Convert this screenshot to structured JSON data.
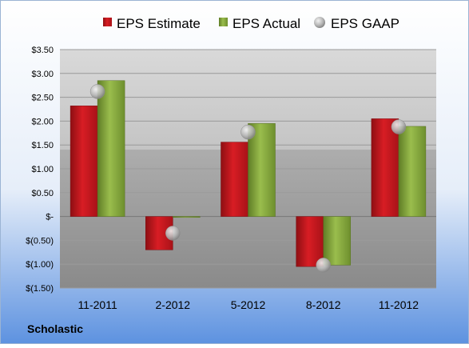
{
  "chart_data": {
    "type": "bar",
    "title": "",
    "xlabel": "",
    "ylabel": "",
    "company": "Scholastic",
    "categories": [
      "11-2011",
      "2-2012",
      "5-2012",
      "8-2012",
      "11-2012"
    ],
    "ylim": [
      -1.5,
      3.5
    ],
    "yticks": [
      3.5,
      3.0,
      2.5,
      2.0,
      1.5,
      1.0,
      0.5,
      0,
      -0.5,
      -1.0,
      -1.5
    ],
    "ytick_labels": [
      "$3.50",
      "$3.00",
      "$2.50",
      "$2.00",
      "$1.50",
      "$1.00",
      "$0.50",
      "$-",
      "$(0.50)",
      "$(1.00)",
      "$(1.50)"
    ],
    "grid": true,
    "legend_position": "top",
    "series": [
      {
        "name": "EPS Estimate",
        "type": "bar",
        "color": "#c0151c",
        "values": [
          2.32,
          -0.7,
          1.56,
          -1.05,
          2.05
        ]
      },
      {
        "name": "EPS Actual",
        "type": "bar",
        "color": "#82a33c",
        "values": [
          2.85,
          -0.02,
          1.95,
          -1.02,
          1.89
        ]
      },
      {
        "name": "EPS GAAP",
        "type": "scatter",
        "color": "#a8a8a8",
        "values": [
          2.62,
          -0.35,
          1.77,
          -1.02,
          1.88
        ]
      }
    ]
  }
}
